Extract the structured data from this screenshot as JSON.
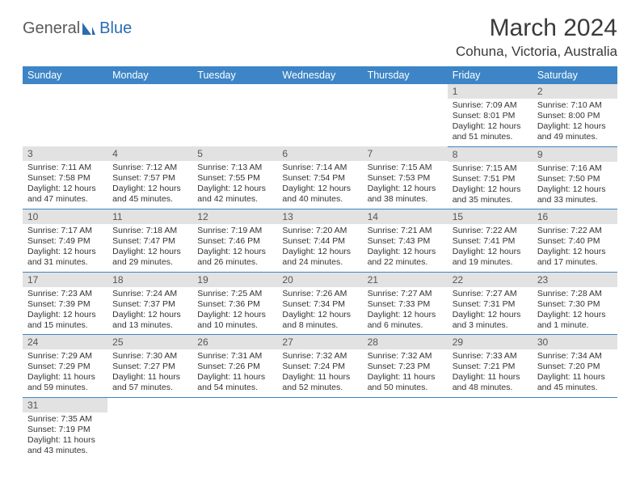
{
  "brand": {
    "part1": "General",
    "part2": "Blue"
  },
  "title": "March 2024",
  "location": "Cohuna, Victoria, Australia",
  "colors": {
    "header_bg": "#3d85c6",
    "header_fg": "#ffffff",
    "daynum_bg": "#e2e2e2",
    "border": "#3d85c6",
    "brand_gray": "#5a5a5a",
    "brand_blue": "#2a6db0"
  },
  "day_headers": [
    "Sunday",
    "Monday",
    "Tuesday",
    "Wednesday",
    "Thursday",
    "Friday",
    "Saturday"
  ],
  "weeks": [
    [
      null,
      null,
      null,
      null,
      null,
      {
        "n": "1",
        "sunrise": "7:09 AM",
        "sunset": "8:01 PM",
        "dl1": "Daylight: 12 hours",
        "dl2": "and 51 minutes."
      },
      {
        "n": "2",
        "sunrise": "7:10 AM",
        "sunset": "8:00 PM",
        "dl1": "Daylight: 12 hours",
        "dl2": "and 49 minutes."
      }
    ],
    [
      {
        "n": "3",
        "sunrise": "7:11 AM",
        "sunset": "7:58 PM",
        "dl1": "Daylight: 12 hours",
        "dl2": "and 47 minutes."
      },
      {
        "n": "4",
        "sunrise": "7:12 AM",
        "sunset": "7:57 PM",
        "dl1": "Daylight: 12 hours",
        "dl2": "and 45 minutes."
      },
      {
        "n": "5",
        "sunrise": "7:13 AM",
        "sunset": "7:55 PM",
        "dl1": "Daylight: 12 hours",
        "dl2": "and 42 minutes."
      },
      {
        "n": "6",
        "sunrise": "7:14 AM",
        "sunset": "7:54 PM",
        "dl1": "Daylight: 12 hours",
        "dl2": "and 40 minutes."
      },
      {
        "n": "7",
        "sunrise": "7:15 AM",
        "sunset": "7:53 PM",
        "dl1": "Daylight: 12 hours",
        "dl2": "and 38 minutes."
      },
      {
        "n": "8",
        "sunrise": "7:15 AM",
        "sunset": "7:51 PM",
        "dl1": "Daylight: 12 hours",
        "dl2": "and 35 minutes."
      },
      {
        "n": "9",
        "sunrise": "7:16 AM",
        "sunset": "7:50 PM",
        "dl1": "Daylight: 12 hours",
        "dl2": "and 33 minutes."
      }
    ],
    [
      {
        "n": "10",
        "sunrise": "7:17 AM",
        "sunset": "7:49 PM",
        "dl1": "Daylight: 12 hours",
        "dl2": "and 31 minutes."
      },
      {
        "n": "11",
        "sunrise": "7:18 AM",
        "sunset": "7:47 PM",
        "dl1": "Daylight: 12 hours",
        "dl2": "and 29 minutes."
      },
      {
        "n": "12",
        "sunrise": "7:19 AM",
        "sunset": "7:46 PM",
        "dl1": "Daylight: 12 hours",
        "dl2": "and 26 minutes."
      },
      {
        "n": "13",
        "sunrise": "7:20 AM",
        "sunset": "7:44 PM",
        "dl1": "Daylight: 12 hours",
        "dl2": "and 24 minutes."
      },
      {
        "n": "14",
        "sunrise": "7:21 AM",
        "sunset": "7:43 PM",
        "dl1": "Daylight: 12 hours",
        "dl2": "and 22 minutes."
      },
      {
        "n": "15",
        "sunrise": "7:22 AM",
        "sunset": "7:41 PM",
        "dl1": "Daylight: 12 hours",
        "dl2": "and 19 minutes."
      },
      {
        "n": "16",
        "sunrise": "7:22 AM",
        "sunset": "7:40 PM",
        "dl1": "Daylight: 12 hours",
        "dl2": "and 17 minutes."
      }
    ],
    [
      {
        "n": "17",
        "sunrise": "7:23 AM",
        "sunset": "7:39 PM",
        "dl1": "Daylight: 12 hours",
        "dl2": "and 15 minutes."
      },
      {
        "n": "18",
        "sunrise": "7:24 AM",
        "sunset": "7:37 PM",
        "dl1": "Daylight: 12 hours",
        "dl2": "and 13 minutes."
      },
      {
        "n": "19",
        "sunrise": "7:25 AM",
        "sunset": "7:36 PM",
        "dl1": "Daylight: 12 hours",
        "dl2": "and 10 minutes."
      },
      {
        "n": "20",
        "sunrise": "7:26 AM",
        "sunset": "7:34 PM",
        "dl1": "Daylight: 12 hours",
        "dl2": "and 8 minutes."
      },
      {
        "n": "21",
        "sunrise": "7:27 AM",
        "sunset": "7:33 PM",
        "dl1": "Daylight: 12 hours",
        "dl2": "and 6 minutes."
      },
      {
        "n": "22",
        "sunrise": "7:27 AM",
        "sunset": "7:31 PM",
        "dl1": "Daylight: 12 hours",
        "dl2": "and 3 minutes."
      },
      {
        "n": "23",
        "sunrise": "7:28 AM",
        "sunset": "7:30 PM",
        "dl1": "Daylight: 12 hours",
        "dl2": "and 1 minute."
      }
    ],
    [
      {
        "n": "24",
        "sunrise": "7:29 AM",
        "sunset": "7:29 PM",
        "dl1": "Daylight: 11 hours",
        "dl2": "and 59 minutes."
      },
      {
        "n": "25",
        "sunrise": "7:30 AM",
        "sunset": "7:27 PM",
        "dl1": "Daylight: 11 hours",
        "dl2": "and 57 minutes."
      },
      {
        "n": "26",
        "sunrise": "7:31 AM",
        "sunset": "7:26 PM",
        "dl1": "Daylight: 11 hours",
        "dl2": "and 54 minutes."
      },
      {
        "n": "27",
        "sunrise": "7:32 AM",
        "sunset": "7:24 PM",
        "dl1": "Daylight: 11 hours",
        "dl2": "and 52 minutes."
      },
      {
        "n": "28",
        "sunrise": "7:32 AM",
        "sunset": "7:23 PM",
        "dl1": "Daylight: 11 hours",
        "dl2": "and 50 minutes."
      },
      {
        "n": "29",
        "sunrise": "7:33 AM",
        "sunset": "7:21 PM",
        "dl1": "Daylight: 11 hours",
        "dl2": "and 48 minutes."
      },
      {
        "n": "30",
        "sunrise": "7:34 AM",
        "sunset": "7:20 PM",
        "dl1": "Daylight: 11 hours",
        "dl2": "and 45 minutes."
      }
    ],
    [
      {
        "n": "31",
        "sunrise": "7:35 AM",
        "sunset": "7:19 PM",
        "dl1": "Daylight: 11 hours",
        "dl2": "and 43 minutes."
      },
      null,
      null,
      null,
      null,
      null,
      null
    ]
  ]
}
